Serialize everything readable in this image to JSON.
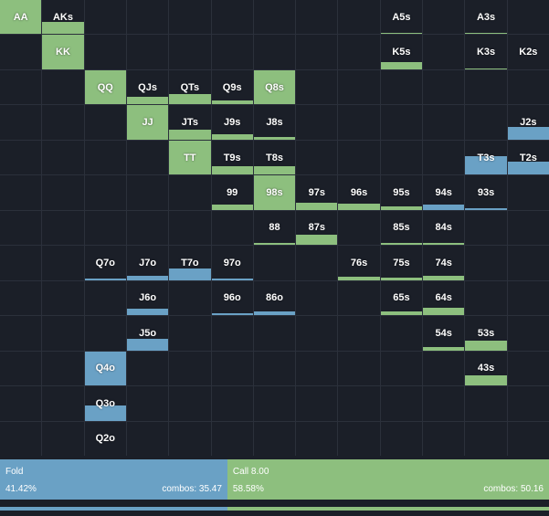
{
  "colors": {
    "background": "#1b1f28",
    "grid_line": "#2b303b",
    "fold": "#6aa1c5",
    "call": "#8dbf7e"
  },
  "grid": {
    "rows": 13,
    "cols": 13,
    "cells": [
      {
        "label": "AA",
        "row": 0,
        "col": 0,
        "fill": 1.0,
        "action": "call"
      },
      {
        "label": "AKs",
        "row": 0,
        "col": 1,
        "fill": 0.35,
        "action": "call"
      },
      {
        "label": "A5s",
        "row": 0,
        "col": 9,
        "fill": 0.05,
        "action": "call"
      },
      {
        "label": "A3s",
        "row": 0,
        "col": 11,
        "fill": 0.04,
        "action": "call"
      },
      {
        "label": "KK",
        "row": 1,
        "col": 1,
        "fill": 1.0,
        "action": "call"
      },
      {
        "label": "K5s",
        "row": 1,
        "col": 9,
        "fill": 0.2,
        "action": "call"
      },
      {
        "label": "K3s",
        "row": 1,
        "col": 11,
        "fill": 0.03,
        "action": "call"
      },
      {
        "label": "K2s",
        "row": 1,
        "col": 12,
        "fill": 0.0,
        "action": "call"
      },
      {
        "label": "QQ",
        "row": 2,
        "col": 2,
        "fill": 1.0,
        "action": "call"
      },
      {
        "label": "QJs",
        "row": 2,
        "col": 3,
        "fill": 0.22,
        "action": "call"
      },
      {
        "label": "QTs",
        "row": 2,
        "col": 4,
        "fill": 0.3,
        "action": "call"
      },
      {
        "label": "Q9s",
        "row": 2,
        "col": 5,
        "fill": 0.12,
        "action": "call"
      },
      {
        "label": "Q8s",
        "row": 2,
        "col": 6,
        "fill": 1.0,
        "action": "call"
      },
      {
        "label": "JJ",
        "row": 3,
        "col": 3,
        "fill": 1.0,
        "action": "call"
      },
      {
        "label": "JTs",
        "row": 3,
        "col": 4,
        "fill": 0.3,
        "action": "call"
      },
      {
        "label": "J9s",
        "row": 3,
        "col": 5,
        "fill": 0.15,
        "action": "call"
      },
      {
        "label": "J8s",
        "row": 3,
        "col": 6,
        "fill": 0.08,
        "action": "call"
      },
      {
        "label": "J2s",
        "row": 3,
        "col": 12,
        "fill": 0.38,
        "action": "fold"
      },
      {
        "label": "TT",
        "row": 4,
        "col": 4,
        "fill": 1.0,
        "action": "call"
      },
      {
        "label": "T9s",
        "row": 4,
        "col": 5,
        "fill": 0.25,
        "action": "call"
      },
      {
        "label": "T8s",
        "row": 4,
        "col": 6,
        "fill": 0.25,
        "action": "call"
      },
      {
        "label": "T3s",
        "row": 4,
        "col": 11,
        "fill": 0.55,
        "action": "fold"
      },
      {
        "label": "T2s",
        "row": 4,
        "col": 12,
        "fill": 0.38,
        "action": "fold"
      },
      {
        "label": "99",
        "row": 5,
        "col": 5,
        "fill": 0.15,
        "action": "call"
      },
      {
        "label": "98s",
        "row": 5,
        "col": 6,
        "fill": 1.0,
        "action": "call"
      },
      {
        "label": "97s",
        "row": 5,
        "col": 7,
        "fill": 0.2,
        "action": "call"
      },
      {
        "label": "96s",
        "row": 5,
        "col": 8,
        "fill": 0.18,
        "action": "call"
      },
      {
        "label": "95s",
        "row": 5,
        "col": 9,
        "fill": 0.1,
        "action": "call"
      },
      {
        "label": "94s",
        "row": 5,
        "col": 10,
        "fill": 0.15,
        "action": "fold"
      },
      {
        "label": "93s",
        "row": 5,
        "col": 11,
        "fill": 0.05,
        "action": "fold"
      },
      {
        "label": "88",
        "row": 6,
        "col": 6,
        "fill": 0.05,
        "action": "call"
      },
      {
        "label": "87s",
        "row": 6,
        "col": 7,
        "fill": 0.3,
        "action": "call"
      },
      {
        "label": "85s",
        "row": 6,
        "col": 9,
        "fill": 0.05,
        "action": "call"
      },
      {
        "label": "84s",
        "row": 6,
        "col": 10,
        "fill": 0.05,
        "action": "call"
      },
      {
        "label": "Q7o",
        "row": 7,
        "col": 2,
        "fill": 0.05,
        "action": "fold"
      },
      {
        "label": "J7o",
        "row": 7,
        "col": 3,
        "fill": 0.12,
        "action": "fold"
      },
      {
        "label": "T7o",
        "row": 7,
        "col": 4,
        "fill": 0.35,
        "action": "fold"
      },
      {
        "label": "97o",
        "row": 7,
        "col": 5,
        "fill": 0.05,
        "action": "fold"
      },
      {
        "label": "76s",
        "row": 7,
        "col": 8,
        "fill": 0.1,
        "action": "call"
      },
      {
        "label": "75s",
        "row": 7,
        "col": 9,
        "fill": 0.08,
        "action": "call"
      },
      {
        "label": "74s",
        "row": 7,
        "col": 10,
        "fill": 0.12,
        "action": "call"
      },
      {
        "label": "J6o",
        "row": 8,
        "col": 3,
        "fill": 0.18,
        "action": "fold"
      },
      {
        "label": "96o",
        "row": 8,
        "col": 5,
        "fill": 0.05,
        "action": "fold"
      },
      {
        "label": "86o",
        "row": 8,
        "col": 6,
        "fill": 0.12,
        "action": "fold"
      },
      {
        "label": "65s",
        "row": 8,
        "col": 9,
        "fill": 0.1,
        "action": "call"
      },
      {
        "label": "64s",
        "row": 8,
        "col": 10,
        "fill": 0.22,
        "action": "call"
      },
      {
        "label": "J5o",
        "row": 9,
        "col": 3,
        "fill": 0.35,
        "action": "fold"
      },
      {
        "label": "54s",
        "row": 9,
        "col": 10,
        "fill": 0.1,
        "action": "call"
      },
      {
        "label": "53s",
        "row": 9,
        "col": 11,
        "fill": 0.28,
        "action": "call"
      },
      {
        "label": "Q4o",
        "row": 10,
        "col": 2,
        "fill": 1.0,
        "action": "fold"
      },
      {
        "label": "43s",
        "row": 10,
        "col": 11,
        "fill": 0.3,
        "action": "call"
      },
      {
        "label": "Q3o",
        "row": 11,
        "col": 2,
        "fill": 0.45,
        "action": "fold"
      },
      {
        "label": "Q2o",
        "row": 12,
        "col": 2,
        "fill": 0.0,
        "action": "fold"
      }
    ]
  },
  "summary": {
    "fold": {
      "label": "Fold",
      "pct": "41.42%",
      "combos": "combos: 35.47",
      "share": 0.4142
    },
    "call": {
      "label": "Call 8.00",
      "pct": "58.58%",
      "combos": "combos: 50.16",
      "share": 0.5858
    }
  },
  "frequency_bar": {
    "fold_share": 0.4142,
    "call_share": 0.5858
  }
}
